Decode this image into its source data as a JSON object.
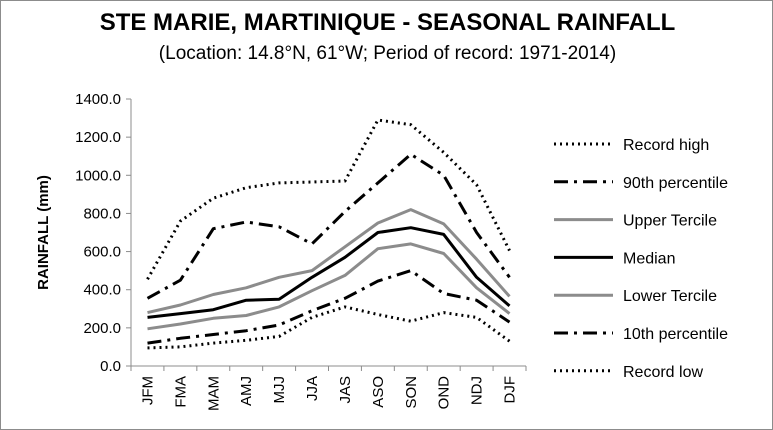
{
  "chart_data": {
    "type": "line",
    "title": "STE MARIE, MARTINIQUE - SEASONAL RAINFALL",
    "subtitle": "(Location: 14.8°N, 61°W; Period of record: 1971-2014)",
    "ylabel": "RAINFALL (mm)",
    "xlabel": "",
    "ylim": [
      0,
      1400
    ],
    "ytick_labels": [
      "0.0",
      "200.0",
      "400.0",
      "600.0",
      "800.0",
      "1000.0",
      "1200.0",
      "1400.0"
    ],
    "categories": [
      "JFM",
      "FMA",
      "MAM",
      "AMJ",
      "MJJ",
      "JJA",
      "JAS",
      "ASO",
      "SON",
      "OND",
      "NDJ",
      "DJF"
    ],
    "legend_position": "right",
    "grid": false,
    "series": [
      {
        "name": "Record high",
        "style": "dotted",
        "color": "#000000",
        "values": [
          455,
          760,
          880,
          935,
          960,
          965,
          970,
          1290,
          1265,
          1120,
          950,
          605
        ]
      },
      {
        "name": "90th percentile",
        "style": "dashdot",
        "color": "#000000",
        "values": [
          355,
          450,
          720,
          755,
          730,
          640,
          810,
          960,
          1110,
          1000,
          700,
          465
        ]
      },
      {
        "name": "Upper Tercile",
        "style": "solid",
        "color": "#8c8c8c",
        "values": [
          280,
          320,
          375,
          410,
          465,
          500,
          625,
          750,
          820,
          745,
          560,
          365
        ]
      },
      {
        "name": "Median",
        "style": "solid",
        "color": "#000000",
        "values": [
          255,
          275,
          295,
          345,
          350,
          465,
          570,
          700,
          725,
          690,
          465,
          315
        ]
      },
      {
        "name": "Lower Tercile",
        "style": "solid",
        "color": "#8c8c8c",
        "values": [
          195,
          220,
          250,
          265,
          310,
          395,
          475,
          615,
          640,
          590,
          410,
          275
        ]
      },
      {
        "name": "10th percentile",
        "style": "dashdot",
        "color": "#000000",
        "values": [
          120,
          145,
          165,
          185,
          215,
          290,
          355,
          445,
          500,
          380,
          345,
          230
        ]
      },
      {
        "name": "Record low",
        "style": "dotted",
        "color": "#000000",
        "values": [
          95,
          100,
          120,
          135,
          155,
          255,
          310,
          270,
          235,
          280,
          255,
          130
        ]
      }
    ]
  }
}
